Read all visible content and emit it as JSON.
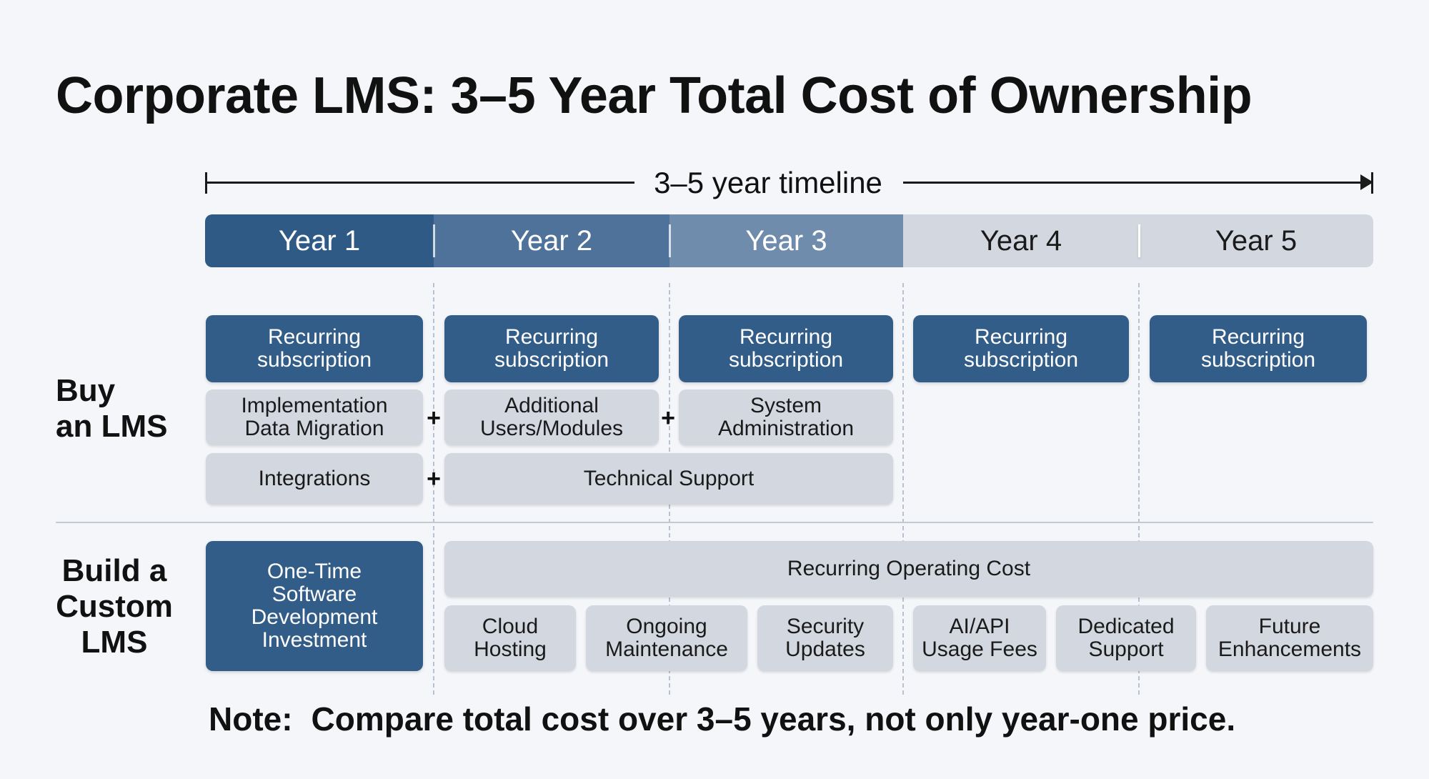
{
  "title": "Corporate LMS: 3–5 Year Total Cost of Ownership",
  "timeline": {
    "label": "3–5 year timeline"
  },
  "years": [
    "Year 1",
    "Year 2",
    "Year 3",
    "Year 4",
    "Year 5"
  ],
  "colors": {
    "year_1": "#2f5a86",
    "year_2": "#4f729a",
    "year_3": "#6f8cad",
    "year_4_5": "#d3d8e0",
    "dark_box": "#325d88",
    "light_box": "#d3d8e0"
  },
  "buy": {
    "label_line1": "Buy",
    "label_line2": "an LMS",
    "subscription": {
      "line1": "Recurring",
      "line2": "subscription"
    },
    "implementation": {
      "line1": "Implementation",
      "line2": "Data Migration"
    },
    "additional_users": {
      "line1": "Additional",
      "line2": "Users/Modules"
    },
    "system_admin": {
      "line1": "System",
      "line2": "Administration"
    },
    "integrations": "Integrations",
    "technical_support": "Technical Support",
    "plus": "+"
  },
  "build": {
    "label_line1": "Build a",
    "label_line2": "Custom",
    "label_line3": "LMS",
    "one_time": {
      "line1": "One-Time",
      "line2": "Software",
      "line3": "Development",
      "line4": "Investment"
    },
    "recurring_operating_cost": "Recurring Operating Cost",
    "items": [
      {
        "line1": "Cloud",
        "line2": "Hosting"
      },
      {
        "line1": "Ongoing",
        "line2": "Maintenance"
      },
      {
        "line1": "Security",
        "line2": "Updates"
      },
      {
        "line1": "AI/API",
        "line2": "Usage Fees"
      },
      {
        "line1": "Dedicated",
        "line2": "Support"
      },
      {
        "line1": "Future",
        "line2": "Enhancements"
      }
    ]
  },
  "note": {
    "lead": "Note:",
    "text": "Compare total cost over 3–5 years, not only year-one price."
  }
}
